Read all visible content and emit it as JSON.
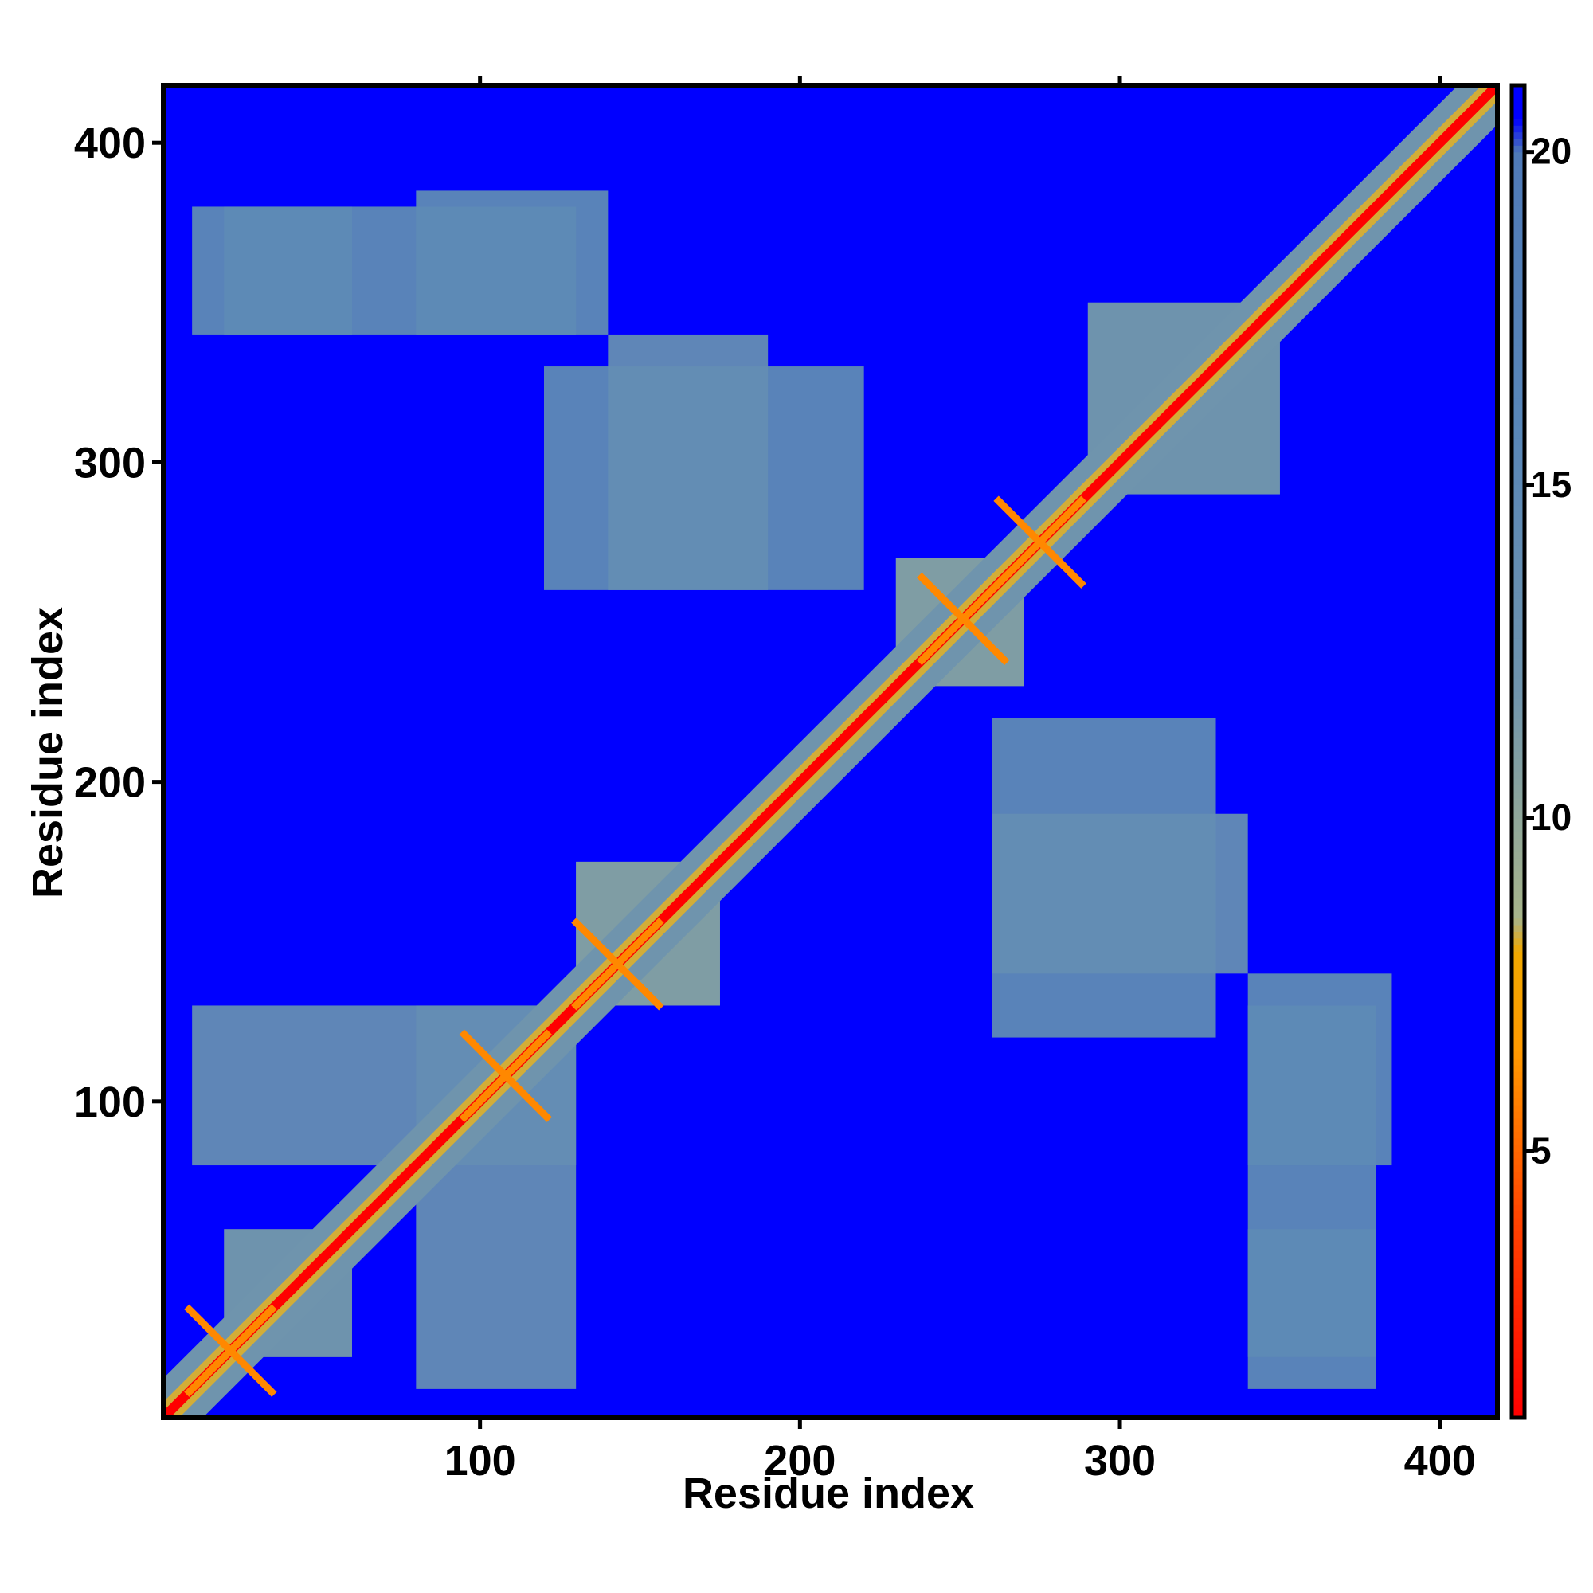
{
  "chart_data": {
    "type": "heatmap",
    "title": "",
    "xlabel": "Residue index",
    "ylabel": "Residue index",
    "xlim": [
      1,
      418
    ],
    "ylim": [
      1,
      418
    ],
    "x_ticks": [
      100,
      200,
      300,
      400
    ],
    "y_ticks": [
      100,
      200,
      300,
      400
    ],
    "colorbar": {
      "ticks": [
        5,
        10,
        15,
        20
      ],
      "range": [
        1,
        21
      ],
      "colors": [
        {
          "value": 1,
          "color": "#ff0000"
        },
        {
          "value": 4,
          "color": "#ff4400"
        },
        {
          "value": 6.5,
          "color": "#ff9900"
        },
        {
          "value": 8,
          "color": "#f0a800"
        },
        {
          "value": 8.5,
          "color": "#a7b48a"
        },
        {
          "value": 12,
          "color": "#6f94ad"
        },
        {
          "value": 16,
          "color": "#5886b8"
        },
        {
          "value": 20,
          "color": "#4f7ab7"
        },
        {
          "value": 20.5,
          "color": "#0000ff"
        },
        {
          "value": 21,
          "color": "#0000ff"
        }
      ]
    },
    "n_residues": 418,
    "value_description": "pairwise residue distance map, symmetric; values above the color scale shown in blue",
    "diagonal_value": 1,
    "contact_regions": [
      {
        "x": [
          20,
          60
        ],
        "y": [
          20,
          60
        ],
        "value": 12
      },
      {
        "x": [
          10,
          130
        ],
        "y": [
          80,
          130
        ],
        "value": 14
      },
      {
        "x": [
          130,
          175
        ],
        "y": [
          130,
          175
        ],
        "value": 11
      },
      {
        "x": [
          230,
          270
        ],
        "y": [
          230,
          270
        ],
        "value": 11
      },
      {
        "x": [
          290,
          350
        ],
        "y": [
          290,
          350
        ],
        "value": 12
      },
      {
        "x": [
          120,
          220
        ],
        "y": [
          260,
          330
        ],
        "value": 15
      },
      {
        "x": [
          260,
          340
        ],
        "y": [
          140,
          190
        ],
        "value": 14
      },
      {
        "x": [
          340,
          380
        ],
        "y": [
          20,
          130
        ],
        "value": 15
      },
      {
        "x": [
          10,
          60
        ],
        "y": [
          340,
          380
        ],
        "value": 15
      },
      {
        "x": [
          80,
          140
        ],
        "y": [
          340,
          385
        ],
        "value": 15
      }
    ],
    "helix_crosses": [
      {
        "x": 22,
        "y": 22
      },
      {
        "x": 143,
        "y": 143
      },
      {
        "x": 251,
        "y": 251
      },
      {
        "x": 275,
        "y": 275
      },
      {
        "x": 108,
        "y": 108
      }
    ]
  }
}
